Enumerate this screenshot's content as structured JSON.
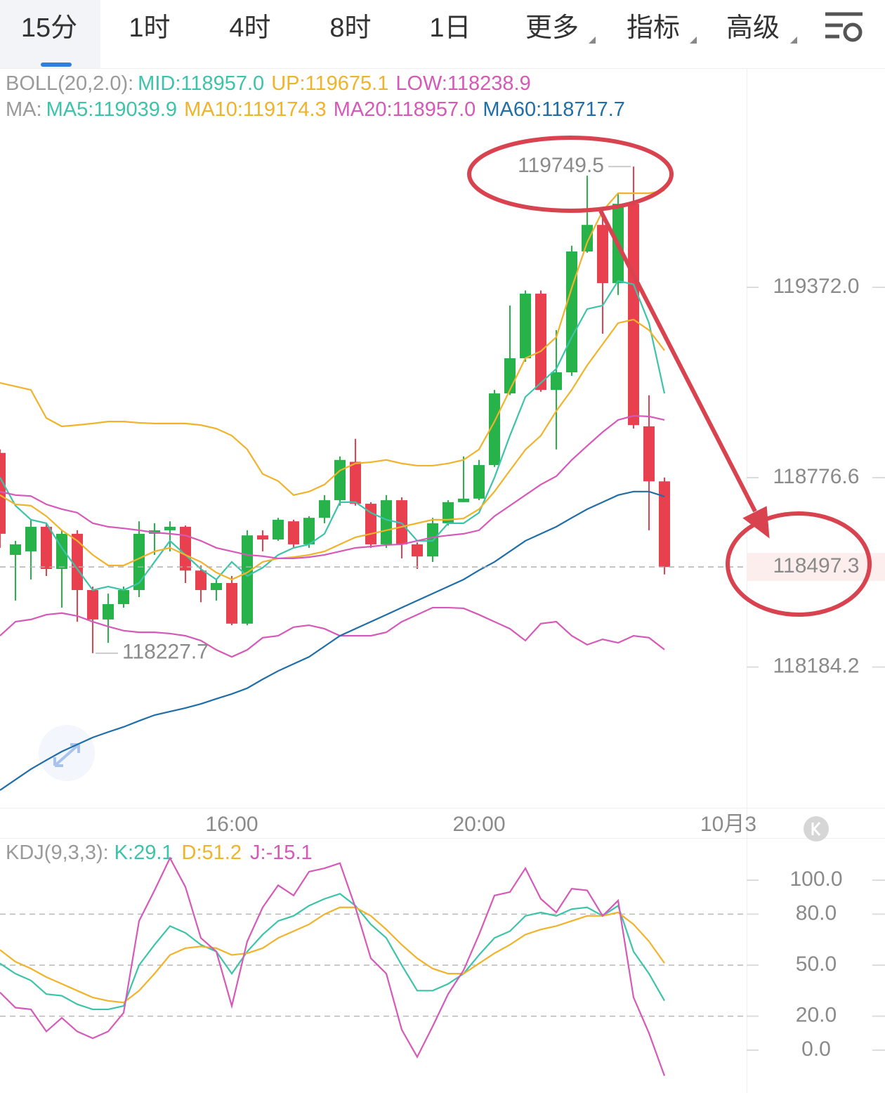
{
  "tabs": [
    "15分",
    "1时",
    "4时",
    "8时",
    "1日",
    "更多",
    "指标",
    "高级"
  ],
  "active_tab": 0,
  "chart_data": [
    {
      "type": "candlestick",
      "boll_label": "BOLL(20,2.0):",
      "boll_mid": "MID:118957.0",
      "ma_label": "MA:",
      "up_color": "#27b24a",
      "down_color": "#e8404f",
      "categories": [
        null,
        null,
        null,
        null,
        null,
        null,
        null,
        null,
        null,
        null,
        null,
        null,
        null,
        null,
        null,
        "16:00",
        null,
        null,
        null,
        null,
        null,
        null,
        null,
        null,
        null,
        null,
        null,
        null,
        null,
        null,
        null,
        "20:00",
        null,
        null,
        null,
        null,
        null,
        null,
        null,
        null,
        null,
        null,
        null,
        null
      ],
      "next_day_label": "10月3",
      "open": [
        118854,
        118535,
        118546,
        118623,
        118491,
        118601,
        118425,
        118333,
        118381,
        118425,
        118601,
        118612,
        118623,
        118486,
        118425,
        118447,
        118320,
        118596,
        118583,
        118640,
        118568,
        118651,
        118706,
        118826,
        118695,
        118568,
        118706,
        118568,
        118530,
        118634,
        118700,
        118711,
        118816,
        119040,
        119150,
        119352,
        119051,
        119106,
        119484,
        119567,
        119385,
        119633,
        118937,
        118765
      ],
      "high": [
        118865,
        118579,
        118645,
        118634,
        118612,
        118612,
        118436,
        118414,
        118436,
        118640,
        118634,
        118640,
        118627,
        118502,
        118458,
        118469,
        118612,
        118612,
        118651,
        118645,
        118656,
        118722,
        118843,
        118898,
        118700,
        118722,
        118715,
        118574,
        118651,
        118706,
        118843,
        118832,
        119051,
        119315,
        119362,
        119362,
        119238,
        119502,
        119721,
        119611,
        119666,
        119749.5,
        119034,
        118777
      ],
      "low": [
        118557,
        118392,
        118458,
        118469,
        118370,
        118326,
        118227.7,
        118260,
        118370,
        118403,
        118535,
        118546,
        118447,
        118387,
        118392,
        118315,
        118315,
        118546,
        118579,
        118557,
        118557,
        118634,
        118689,
        118689,
        118557,
        118557,
        118524,
        118491,
        118513,
        118627,
        118700,
        118706,
        118810,
        119035,
        119139,
        119045,
        118865,
        119095,
        119480,
        119227,
        119348,
        118930,
        118612,
        118474
      ],
      "close": [
        118601,
        118568,
        118623,
        118491,
        118601,
        118425,
        118333,
        118381,
        118425,
        118601,
        118612,
        118623,
        118486,
        118425,
        118447,
        118320,
        118596,
        118583,
        118645,
        118568,
        118651,
        118706,
        118832,
        118695,
        118568,
        118706,
        118568,
        118530,
        118634,
        118700,
        118711,
        118816,
        119040,
        119150,
        119352,
        119051,
        119106,
        119484,
        119567,
        119385,
        119633,
        118941,
        118765,
        118497.3
      ],
      "series": [
        {
          "name": "UP:119675.1",
          "color": "#f0b32a",
          "values": [
            119073,
            119062,
            119051,
            118963,
            118937,
            118941,
            118946,
            118952,
            118952,
            118948,
            118946,
            118946,
            118946,
            118941,
            118930,
            118908,
            118865,
            118788,
            118766,
            118722,
            118733,
            118755,
            118799,
            118821,
            118825,
            118832,
            118821,
            118814,
            118814,
            118821,
            118832,
            118865,
            118952,
            119051,
            119150,
            119172,
            119216,
            119370,
            119513,
            119611,
            119666,
            119666,
            119666,
            119675.1
          ]
        },
        {
          "name": "LOW:118238.9",
          "color": "#d659b9",
          "values": [
            118282,
            118326,
            118333,
            118348,
            118353,
            118344,
            118326,
            118311,
            118298,
            118293,
            118293,
            118289,
            118282,
            118267,
            118238,
            118216,
            118238,
            118276,
            118282,
            118309,
            118315,
            118304,
            118282,
            118282,
            118282,
            118293,
            118326,
            118348,
            118370,
            118370,
            118368,
            118348,
            118326,
            118304,
            118267,
            118320,
            118326,
            118282,
            118254,
            118271,
            118260,
            118282,
            118276,
            118238.9
          ]
        },
        {
          "name": "MA5:119039.9",
          "color": "#3cc4aa",
          "values": [
            118777,
            118689,
            118645,
            118634,
            118557,
            118491,
            118425,
            118436,
            118425,
            118447,
            118513,
            118579,
            118535,
            118491,
            118458,
            118513,
            118469,
            118495,
            118535,
            118557,
            118568,
            118601,
            118700,
            118700,
            118667,
            118645,
            118634,
            118579,
            118579,
            118634,
            118634,
            118667,
            118777,
            118908,
            119029,
            119073,
            119117,
            119216,
            119304,
            119315,
            119392,
            119381,
            119260,
            119039.9
          ]
        },
        {
          "name": "MA10:119174.3",
          "color": "#f0b32a",
          "values": [
            118722,
            118693,
            118689,
            118656,
            118612,
            118579,
            118535,
            118502,
            118502,
            118524,
            118546,
            118557,
            118535,
            118513,
            118480,
            118458,
            118480,
            118513,
            118524,
            118528,
            118535,
            118546,
            118568,
            118590,
            118601,
            118612,
            118623,
            118634,
            118645,
            118645,
            118649,
            118678,
            118733,
            118799,
            118864,
            118908,
            118985,
            119051,
            119128,
            119194,
            119260,
            119271,
            119238,
            119174.3
          ]
        },
        {
          "name": "MA20:118957.0",
          "color": "#d659b9",
          "values": [
            118733,
            118722,
            118719,
            118693,
            118678,
            118667,
            118634,
            118623,
            118618,
            118612,
            118605,
            118601,
            118596,
            118579,
            118557,
            118546,
            118535,
            118531,
            118524,
            118524,
            118528,
            118535,
            118546,
            118557,
            118561,
            118566,
            118568,
            118579,
            118590,
            118596,
            118601,
            118612,
            118656,
            118689,
            118722,
            118755,
            118781,
            118832,
            118876,
            118919,
            118957,
            118970,
            118968,
            118957.0
          ]
        },
        {
          "name": "MA60:118717.7",
          "color": "#1f6ea8",
          "values": [
            117799,
            117832,
            117865,
            117893,
            117920,
            117942,
            117964,
            117981,
            117997,
            118016,
            118034,
            118045,
            118056,
            118069,
            118085,
            118100,
            118118,
            118146,
            118172,
            118194,
            118216,
            118249,
            118282,
            118304,
            118326,
            118348,
            118370,
            118392,
            118414,
            118436,
            118458,
            118487,
            118513,
            118546,
            118579,
            118601,
            118623,
            118651,
            118678,
            118700,
            118722,
            118733,
            118733,
            118717.7
          ]
        }
      ],
      "ylim": [
        117744,
        119864
      ],
      "yticks": [
        {
          "value": 119372,
          "label": "119372.0"
        },
        118776.6,
        118184.2
      ]
    },
    {
      "type": "line",
      "label": "KDJ(9,3,3):",
      "series": [
        {
          "name": "K:29.1",
          "color": "#3cc4aa",
          "values": [
            51,
            45,
            41,
            33,
            32,
            27,
            24,
            24,
            26,
            50,
            62,
            73,
            69,
            62,
            58,
            45,
            58,
            68,
            76,
            79,
            85,
            89,
            92,
            85,
            74,
            66,
            50,
            35,
            35,
            39,
            45,
            56,
            66,
            70,
            79,
            81,
            79,
            83,
            84,
            79,
            85,
            58,
            45,
            29.1
          ]
        },
        {
          "name": "D:51.2",
          "color": "#f0b32a",
          "values": [
            59,
            52,
            48,
            43,
            39,
            35,
            31,
            29,
            28,
            35,
            45,
            56,
            60,
            61,
            60,
            56,
            57,
            60,
            66,
            70,
            74,
            80,
            84,
            84,
            79,
            71,
            62,
            54,
            48,
            45,
            45,
            51,
            57,
            62,
            68,
            71,
            73,
            76,
            79,
            79,
            81,
            74,
            64,
            51.2
          ]
        },
        {
          "name": "J:-15.1",
          "color": "#d659b9",
          "values": [
            34,
            25,
            24,
            11,
            19,
            11,
            7,
            11,
            22,
            76,
            94,
            113,
            96,
            66,
            58,
            26,
            64,
            84,
            97,
            91,
            105,
            107,
            110,
            84,
            54,
            45,
            12,
            -4,
            14,
            33,
            47,
            68,
            91,
            93,
            107,
            89,
            81,
            95,
            94,
            79,
            88,
            31,
            10,
            -15.1
          ]
        }
      ],
      "ylim": [
        -25.2,
        124.8
      ],
      "yticks": [
        {
          "value": 100,
          "label": "100.0"
        },
        {
          "value": 80,
          "label": "80.0"
        },
        {
          "value": 50,
          "label": "50.0"
        },
        {
          "value": 20,
          "label": "20.0"
        },
        {
          "value": 0,
          "label": "0.0"
        }
      ],
      "grid": true
    }
  ]
}
